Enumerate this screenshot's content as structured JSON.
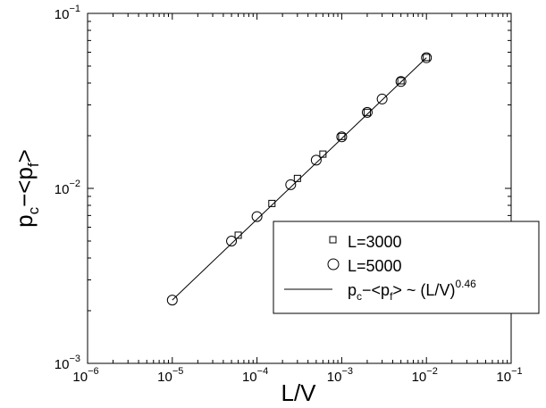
{
  "chart_data": {
    "type": "scatter",
    "xscale": "log",
    "yscale": "log",
    "xlim": [
      1e-06,
      0.1
    ],
    "ylim": [
      0.001,
      0.1
    ],
    "grid": false,
    "legend_position": "bottom-right",
    "xlabel": "L/V",
    "ylabel": "pc−<pf>",
    "ylabel_parts": {
      "main": "p",
      "sub1": "c",
      "mid": "−<p",
      "sub2": "f",
      "end": ">"
    },
    "x_ticks": [
      {
        "base": "10",
        "exp": "−6",
        "value": 1e-06
      },
      {
        "base": "10",
        "exp": "−5",
        "value": 1e-05
      },
      {
        "base": "10",
        "exp": "−4",
        "value": 0.0001
      },
      {
        "base": "10",
        "exp": "−3",
        "value": 0.001
      },
      {
        "base": "10",
        "exp": "−2",
        "value": 0.01
      },
      {
        "base": "10",
        "exp": "−1",
        "value": 0.1
      }
    ],
    "y_ticks": [
      {
        "base": "10",
        "exp": "−3",
        "value": 0.001
      },
      {
        "base": "10",
        "exp": "−2",
        "value": 0.01
      },
      {
        "base": "10",
        "exp": "−1",
        "value": 0.1
      }
    ],
    "series": [
      {
        "name": "L=3000",
        "marker": "square",
        "x": [
          6e-05,
          0.00015,
          0.0003,
          0.0006,
          0.001,
          0.002,
          0.005,
          0.01
        ],
        "y": [
          0.0054,
          0.0082,
          0.0114,
          0.0157,
          0.0198,
          0.0272,
          0.0412,
          0.056
        ]
      },
      {
        "name": "L=5000",
        "marker": "circle",
        "x": [
          1e-05,
          5e-05,
          0.0001,
          0.00025,
          0.0005,
          0.001,
          0.002,
          0.003,
          0.005,
          0.01
        ],
        "y": [
          0.0023,
          0.005,
          0.0069,
          0.0105,
          0.0145,
          0.0197,
          0.0272,
          0.0324,
          0.0408,
          0.0558
        ]
      }
    ],
    "fit_line": {
      "exponent": 0.46,
      "x_range": [
        1e-05,
        0.01
      ],
      "y_range": [
        0.0023,
        0.0558
      ]
    },
    "legend_entries": [
      {
        "marker": "square",
        "label": "L=3000"
      },
      {
        "marker": "circle",
        "label": "L=5000"
      },
      {
        "marker": "line",
        "label_main": "p",
        "label_sub1": "c",
        "label_mid": "−<p",
        "label_sub2": "f",
        "label_end": "> ~ (L/V)",
        "label_exp": "0.46"
      }
    ]
  }
}
